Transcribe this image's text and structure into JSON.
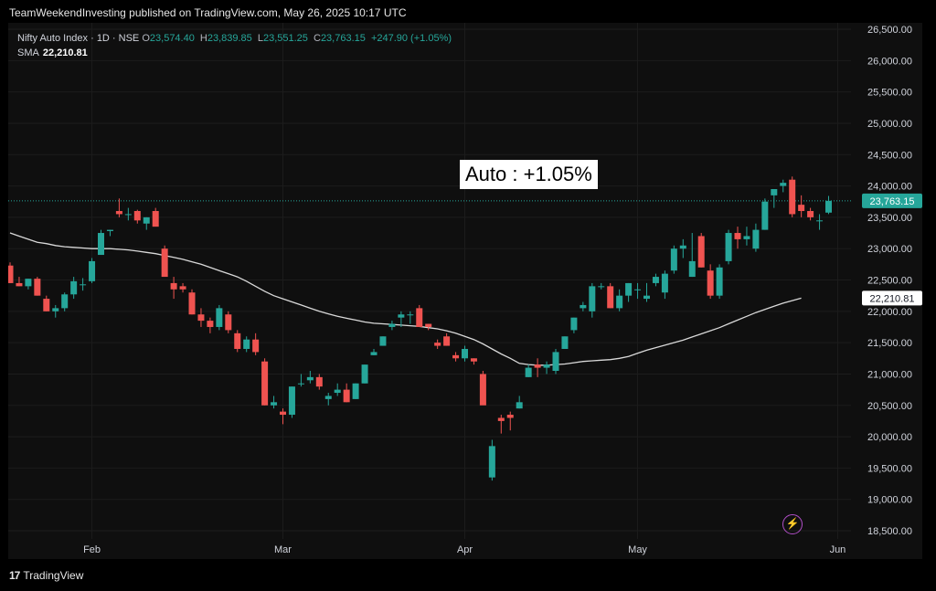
{
  "header": {
    "text": "TeamWeekendInvesting published on TradingView.com, May 26, 2025 10:17 UTC"
  },
  "legend": {
    "symbol": "Nifty Auto Index · 1D · NSE",
    "o_label": "O",
    "o_value": "23,574.40",
    "h_label": "H",
    "h_value": "23,839.85",
    "l_label": "L",
    "l_value": "23,551.25",
    "c_label": "C",
    "c_value": "23,763.15",
    "change": "+247.90 (+1.05%)",
    "sma_label": "SMA",
    "sma_value": "22,210.81"
  },
  "annotation": {
    "text": "Auto : +1.05%"
  },
  "footer": {
    "logo": "17",
    "brand": "TradingView"
  },
  "colors": {
    "up": "#26a69a",
    "down": "#ef5350",
    "background": "#0f0f0f",
    "sma": "#d9d9d9",
    "price_label": "#26a69a",
    "bolt": "#b24fc9"
  },
  "icons": {
    "bolt": "lightning-bolt-icon",
    "logo": "tradingview-logo-icon"
  },
  "chart_data": {
    "type": "candlestick",
    "title": "",
    "ylim": [
      18400,
      26600
    ],
    "y_ticks": [
      18500,
      19000,
      19500,
      20000,
      20500,
      21000,
      21500,
      22000,
      22500,
      23000,
      23500,
      24000,
      24500,
      25000,
      25500,
      26000,
      26500
    ],
    "y_tick_labels": [
      "18,500.00",
      "19,000.00",
      "19,500.00",
      "20,000.00",
      "20,500.00",
      "21,000.00",
      "21,500.00",
      "22,000.00",
      "22,500.00",
      "23,000.00",
      "23,500.00",
      "24,000.00",
      "24,500.00",
      "25,000.00",
      "25,500.00",
      "26,000.00",
      "26,500.00"
    ],
    "x_labels": [
      {
        "label": "Feb",
        "index": 9
      },
      {
        "label": "Mar",
        "index": 30
      },
      {
        "label": "Apr",
        "index": 50
      },
      {
        "label": "May",
        "index": 69
      },
      {
        "label": "Jun",
        "index": 91
      }
    ],
    "last_price": {
      "value": 23763.15,
      "label": "23,763.15"
    },
    "sma_last": {
      "value": 22210.81,
      "label": "22,210.81"
    },
    "sma": [
      23250,
      23200,
      23150,
      23100,
      23080,
      23050,
      23030,
      23020,
      23010,
      23000,
      23000,
      23000,
      22990,
      22980,
      22960,
      22940,
      22920,
      22890,
      22860,
      22830,
      22790,
      22750,
      22700,
      22650,
      22600,
      22550,
      22480,
      22400,
      22320,
      22250,
      22200,
      22150,
      22100,
      22050,
      22000,
      21960,
      21920,
      21890,
      21860,
      21830,
      21810,
      21800,
      21790,
      21780,
      21770,
      21760,
      21740,
      21720,
      21690,
      21650,
      21600,
      21550,
      21480,
      21400,
      21320,
      21250,
      21170,
      21150,
      21140,
      21140,
      21150,
      21160,
      21180,
      21200,
      21210,
      21220,
      21230,
      21250,
      21280,
      21330,
      21380,
      21420,
      21460,
      21500,
      21540,
      21590,
      21640,
      21690,
      21740,
      21800,
      21860,
      21920,
      21980,
      22030,
      22080,
      22130,
      22170,
      22210
    ],
    "series": [
      {
        "name": "",
        "ohlc": [
          [
            22730,
            22780,
            22450,
            22450
          ],
          [
            22450,
            22550,
            22400,
            22400
          ],
          [
            22400,
            22520,
            22350,
            22520
          ],
          [
            22520,
            22550,
            22250,
            22250
          ],
          [
            22200,
            22250,
            22000,
            22000
          ],
          [
            22000,
            22100,
            21900,
            22050
          ],
          [
            22050,
            22300,
            22000,
            22270
          ],
          [
            22270,
            22550,
            22200,
            22480
          ],
          [
            22430,
            22530,
            22330,
            22430
          ],
          [
            22480,
            22850,
            22450,
            22800
          ],
          [
            22900,
            23300,
            22900,
            23250
          ],
          [
            23280,
            23300,
            23200,
            23300
          ],
          [
            23600,
            23800,
            23500,
            23550
          ],
          [
            23550,
            23650,
            23450,
            23550
          ],
          [
            23600,
            23620,
            23400,
            23450
          ],
          [
            23400,
            23500,
            23300,
            23500
          ],
          [
            23600,
            23650,
            23400,
            23350
          ],
          [
            23000,
            23050,
            22600,
            22550
          ],
          [
            22450,
            22550,
            22200,
            22350
          ],
          [
            22400,
            22450,
            22300,
            22350
          ],
          [
            22300,
            22350,
            21950,
            21950
          ],
          [
            21950,
            22050,
            21750,
            21850
          ],
          [
            21850,
            21900,
            21650,
            21750
          ],
          [
            21750,
            22100,
            21700,
            22050
          ],
          [
            21950,
            22000,
            21650,
            21700
          ],
          [
            21650,
            21700,
            21350,
            21400
          ],
          [
            21400,
            21600,
            21350,
            21550
          ],
          [
            21550,
            21650,
            21300,
            21350
          ],
          [
            21200,
            21250,
            20500,
            20500
          ],
          [
            20500,
            20650,
            20450,
            20550
          ],
          [
            20400,
            20450,
            20200,
            20350
          ],
          [
            20350,
            20800,
            20300,
            20800
          ],
          [
            20850,
            21000,
            20800,
            20850
          ],
          [
            20900,
            21050,
            20850,
            20950
          ],
          [
            20950,
            21000,
            20750,
            20800
          ],
          [
            20600,
            20700,
            20500,
            20650
          ],
          [
            20700,
            20850,
            20650,
            20750
          ],
          [
            20750,
            20850,
            20550,
            20550
          ],
          [
            20600,
            20850,
            20600,
            20850
          ],
          [
            20850,
            21150,
            20850,
            21150
          ],
          [
            21300,
            21400,
            21300,
            21350
          ],
          [
            21450,
            21600,
            21450,
            21600
          ],
          [
            21750,
            21850,
            21700,
            21800
          ],
          [
            21900,
            22000,
            21750,
            21950
          ],
          [
            21950,
            22000,
            21800,
            21950
          ],
          [
            22050,
            22100,
            21800,
            21750
          ],
          [
            21800,
            21800,
            21700,
            21750
          ],
          [
            21500,
            21550,
            21400,
            21450
          ],
          [
            21600,
            21650,
            21450,
            21450
          ],
          [
            21300,
            21350,
            21200,
            21250
          ],
          [
            21250,
            21450,
            21200,
            21400
          ],
          [
            21250,
            21250,
            21150,
            21200
          ],
          [
            21000,
            21050,
            20550,
            20500
          ],
          [
            19350,
            19950,
            19300,
            19850
          ],
          [
            20300,
            20350,
            20050,
            20250
          ],
          [
            20350,
            20400,
            20100,
            20300
          ],
          [
            20450,
            20650,
            20450,
            20550
          ],
          [
            20950,
            21150,
            20950,
            21100
          ],
          [
            21150,
            21250,
            20950,
            21100
          ],
          [
            21100,
            21200,
            21000,
            21150
          ],
          [
            21050,
            21400,
            21000,
            21350
          ],
          [
            21400,
            21600,
            21400,
            21600
          ],
          [
            21700,
            21900,
            21650,
            21900
          ],
          [
            22050,
            22150,
            22000,
            22100
          ],
          [
            22000,
            22450,
            21900,
            22400
          ],
          [
            22400,
            22450,
            22350,
            22400
          ],
          [
            22400,
            22450,
            22050,
            22050
          ],
          [
            22050,
            22350,
            22000,
            22250
          ],
          [
            22250,
            22450,
            22150,
            22450
          ],
          [
            22350,
            22450,
            22200,
            22350
          ],
          [
            22200,
            22450,
            22150,
            22250
          ],
          [
            22450,
            22600,
            22400,
            22550
          ],
          [
            22300,
            22650,
            22200,
            22600
          ],
          [
            22650,
            23050,
            22600,
            23000
          ],
          [
            23000,
            23150,
            22850,
            23050
          ],
          [
            22550,
            23250,
            22550,
            22800
          ],
          [
            23200,
            23250,
            22700,
            22700
          ],
          [
            22650,
            22750,
            22200,
            22250
          ],
          [
            22250,
            22750,
            22200,
            22700
          ],
          [
            22800,
            23300,
            22750,
            23250
          ],
          [
            23250,
            23350,
            23000,
            23150
          ],
          [
            23150,
            23350,
            23050,
            23200
          ],
          [
            23000,
            23400,
            22950,
            23300
          ],
          [
            23300,
            23800,
            23300,
            23750
          ],
          [
            23850,
            23950,
            23650,
            23950
          ],
          [
            24000,
            24100,
            23900,
            24050
          ],
          [
            24100,
            24150,
            23500,
            23550
          ],
          [
            23700,
            23850,
            23500,
            23600
          ],
          [
            23600,
            23650,
            23450,
            23500
          ],
          [
            23450,
            23550,
            23300,
            23450
          ],
          [
            23574.4,
            23839.85,
            23551.25,
            23763.15
          ]
        ]
      }
    ]
  }
}
